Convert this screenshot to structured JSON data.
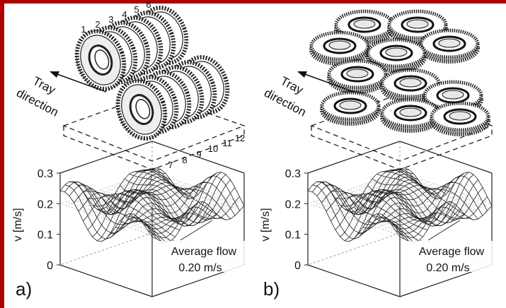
{
  "panels": [
    {
      "label": "a)",
      "tray_label": [
        "Tray",
        "direction"
      ],
      "gear_numbers": [
        "1",
        "2",
        "3",
        "4",
        "5",
        "6",
        "7",
        "8",
        "9",
        "10",
        "11",
        "12"
      ],
      "axis_label": "v [m/s]",
      "axis_ticks": [
        0,
        0.1,
        0.2,
        0.3
      ],
      "annotation": [
        "Average flow",
        "0.20 m/s"
      ]
    },
    {
      "label": "b)",
      "tray_label": [
        "Tray",
        "direction"
      ],
      "axis_label": "v [m/s]",
      "axis_ticks": [
        0,
        0.1,
        0.2,
        0.3
      ],
      "annotation": [
        "Average flow",
        "0.20 m/s"
      ]
    }
  ]
}
